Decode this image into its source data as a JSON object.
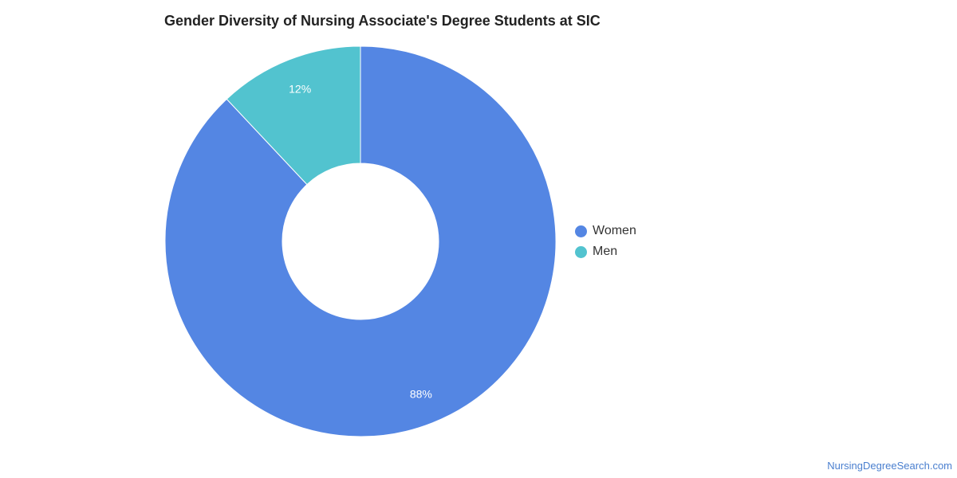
{
  "chart_data": {
    "type": "pie",
    "title": "Gender Diversity of Nursing Associate's Degree Students at SIC",
    "donut": true,
    "legend_position": "right",
    "slices": [
      {
        "label": "Women",
        "value": 88,
        "display": "88%",
        "color": "#5486e3"
      },
      {
        "label": "Men",
        "value": 12,
        "display": "12%",
        "color": "#52c3cf"
      }
    ]
  },
  "footer": {
    "source": "NursingDegreeSearch.com"
  }
}
